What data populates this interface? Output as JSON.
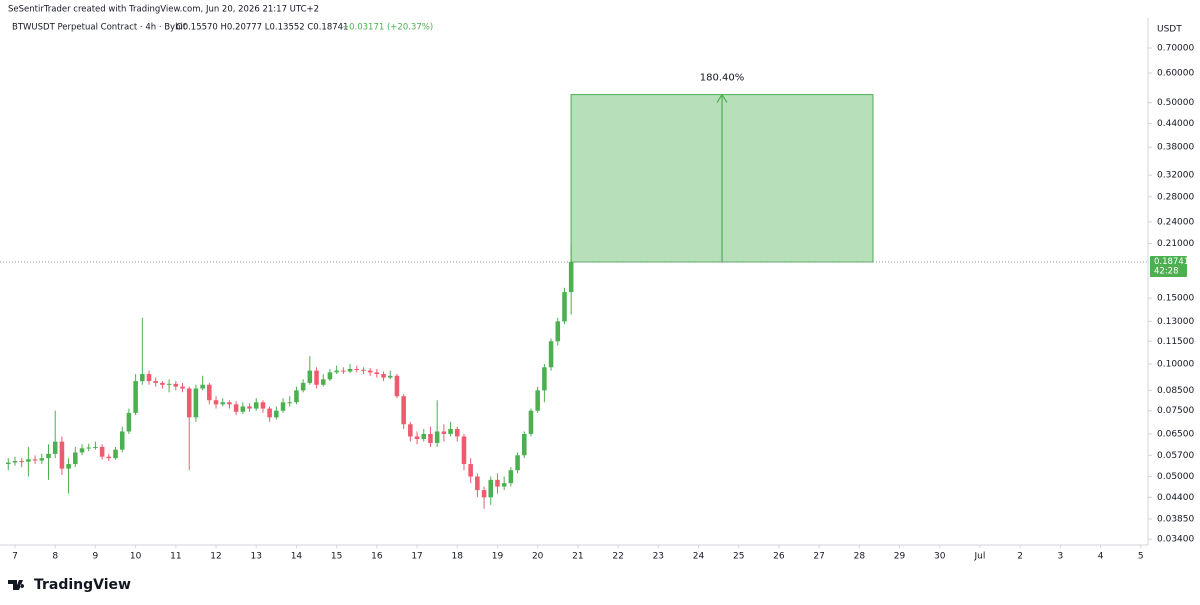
{
  "chart_data": {
    "type": "candlestick",
    "credit": "SeSentirTrader created with TradingView.com, Jun 20, 2026 21:17 UTC+2",
    "symbol": "BTWUSDT Perpetual Contract · 4h · Bybit",
    "ohlc_text": "O0.15570 H0.20777 L0.13552 C0.18741",
    "change_text": "+0.03171 (+20.37%)",
    "currency": "USDT",
    "countdown": "42:28",
    "brand": "TradingView",
    "up_color": "#4caf50",
    "down_color": "#ef5b6e",
    "log_scale": true,
    "grid": false,
    "x": [
      -0.167,
      0,
      0.167,
      0.333,
      0.5,
      0.667,
      0.833,
      1,
      1.167,
      1.333,
      1.5,
      1.667,
      1.833,
      2,
      2.167,
      2.333,
      2.5,
      2.667,
      2.833,
      3,
      3.167,
      3.333,
      3.5,
      3.667,
      3.833,
      4,
      4.167,
      4.333,
      4.5,
      4.667,
      4.833,
      5,
      5.167,
      5.333,
      5.5,
      5.667,
      5.833,
      6,
      6.167,
      6.333,
      6.5,
      6.667,
      6.833,
      7,
      7.167,
      7.333,
      7.5,
      7.667,
      7.833,
      8,
      8.167,
      8.333,
      8.5,
      8.667,
      8.833,
      9,
      9.167,
      9.333,
      9.5,
      9.667,
      9.833,
      10,
      10.167,
      10.333,
      10.5,
      10.667,
      10.833,
      11,
      11.167,
      11.333,
      11.5,
      11.667,
      11.833,
      12,
      12.167,
      12.333,
      12.5,
      12.667,
      12.833,
      13,
      13.167,
      13.333,
      13.5,
      13.667,
      13.833
    ],
    "open": [
      0.054,
      0.0545,
      0.055,
      0.0548,
      0.0556,
      0.0552,
      0.056,
      0.0575,
      0.062,
      0.0525,
      0.054,
      0.058,
      0.0595,
      0.0598,
      0.06,
      0.0565,
      0.056,
      0.059,
      0.066,
      0.074,
      0.09,
      0.094,
      0.09,
      0.089,
      0.088,
      0.0885,
      0.087,
      0.086,
      0.072,
      0.086,
      0.088,
      0.08,
      0.078,
      0.079,
      0.078,
      0.0745,
      0.077,
      0.076,
      0.079,
      0.076,
      0.072,
      0.075,
      0.079,
      0.079,
      0.085,
      0.089,
      0.096,
      0.088,
      0.091,
      0.095,
      0.096,
      0.0955,
      0.097,
      0.0965,
      0.096,
      0.095,
      0.094,
      0.092,
      0.093,
      0.082,
      0.069,
      0.064,
      0.063,
      0.065,
      0.0615,
      0.066,
      0.065,
      0.067,
      0.064,
      0.054,
      0.05,
      0.046,
      0.044,
      0.049,
      0.047,
      0.048,
      0.052,
      0.057,
      0.065,
      0.075,
      0.085,
      0.098,
      0.115,
      0.13,
      0.1557
    ],
    "high": [
      0.056,
      0.0565,
      0.056,
      0.06,
      0.057,
      0.0575,
      0.061,
      0.075,
      0.064,
      0.056,
      0.06,
      0.061,
      0.0612,
      0.062,
      0.061,
      0.0575,
      0.06,
      0.068,
      0.076,
      0.094,
      0.133,
      0.096,
      0.092,
      0.09,
      0.091,
      0.09,
      0.089,
      0.087,
      0.088,
      0.093,
      0.089,
      0.082,
      0.081,
      0.08,
      0.0795,
      0.079,
      0.0785,
      0.081,
      0.08,
      0.077,
      0.077,
      0.081,
      0.082,
      0.087,
      0.091,
      0.105,
      0.098,
      0.094,
      0.097,
      0.099,
      0.098,
      0.1,
      0.099,
      0.098,
      0.0975,
      0.097,
      0.0955,
      0.096,
      0.094,
      0.083,
      0.07,
      0.066,
      0.067,
      0.068,
      0.08,
      0.069,
      0.07,
      0.068,
      0.065,
      0.056,
      0.051,
      0.047,
      0.05,
      0.051,
      0.05,
      0.053,
      0.058,
      0.066,
      0.076,
      0.087,
      0.1,
      0.117,
      0.133,
      0.16,
      0.20777
    ],
    "low": [
      0.052,
      0.0535,
      0.053,
      0.05,
      0.054,
      0.054,
      0.049,
      0.056,
      0.0505,
      0.045,
      0.053,
      0.057,
      0.0585,
      0.059,
      0.0555,
      0.055,
      0.0555,
      0.058,
      0.065,
      0.073,
      0.088,
      0.088,
      0.087,
      0.086,
      0.084,
      0.085,
      0.084,
      0.052,
      0.07,
      0.085,
      0.078,
      0.076,
      0.077,
      0.076,
      0.073,
      0.0735,
      0.0745,
      0.075,
      0.074,
      0.07,
      0.071,
      0.074,
      0.077,
      0.078,
      0.084,
      0.088,
      0.086,
      0.087,
      0.09,
      0.094,
      0.094,
      0.0945,
      0.095,
      0.094,
      0.093,
      0.092,
      0.09,
      0.091,
      0.081,
      0.067,
      0.062,
      0.061,
      0.062,
      0.06,
      0.06,
      0.062,
      0.064,
      0.062,
      0.052,
      0.048,
      0.044,
      0.041,
      0.042,
      0.045,
      0.046,
      0.047,
      0.051,
      0.056,
      0.064,
      0.074,
      0.079,
      0.096,
      0.112,
      0.128,
      0.13552
    ],
    "close": [
      0.0545,
      0.055,
      0.0548,
      0.0556,
      0.0552,
      0.056,
      0.0575,
      0.062,
      0.0525,
      0.054,
      0.058,
      0.0595,
      0.0598,
      0.06,
      0.0565,
      0.056,
      0.059,
      0.066,
      0.074,
      0.09,
      0.094,
      0.09,
      0.089,
      0.088,
      0.0885,
      0.087,
      0.086,
      0.072,
      0.086,
      0.088,
      0.08,
      0.078,
      0.079,
      0.078,
      0.0745,
      0.077,
      0.076,
      0.079,
      0.076,
      0.072,
      0.075,
      0.079,
      0.079,
      0.085,
      0.089,
      0.096,
      0.088,
      0.091,
      0.095,
      0.096,
      0.0955,
      0.097,
      0.0965,
      0.096,
      0.095,
      0.094,
      0.092,
      0.093,
      0.082,
      0.069,
      0.064,
      0.063,
      0.065,
      0.0615,
      0.066,
      0.065,
      0.067,
      0.064,
      0.054,
      0.05,
      0.046,
      0.044,
      0.049,
      0.047,
      0.048,
      0.052,
      0.057,
      0.065,
      0.075,
      0.085,
      0.098,
      0.115,
      0.13,
      0.1557,
      0.18741
    ],
    "measure": {
      "x": [
        13.83,
        21.34
      ],
      "from": 0.18741,
      "percent": {
        "value": 180.4,
        "label": "180.40%"
      },
      "color": "#4caf50"
    },
    "xlim": [
      -0.373,
      28.18
    ],
    "xticks": [
      {
        "value": 0,
        "label": "7"
      },
      {
        "value": 1,
        "label": "8"
      },
      {
        "value": 2,
        "label": "9"
      },
      {
        "value": 3,
        "label": "10"
      },
      {
        "value": 4,
        "label": "11"
      },
      {
        "value": 5,
        "label": "12"
      },
      {
        "value": 6,
        "label": "13"
      },
      {
        "value": 7,
        "label": "14"
      },
      {
        "value": 8,
        "label": "15"
      },
      {
        "value": 9,
        "label": "16"
      },
      {
        "value": 10,
        "label": "17"
      },
      {
        "value": 11,
        "label": "18"
      },
      {
        "value": 12,
        "label": "19"
      },
      {
        "value": 13,
        "label": "20"
      },
      {
        "value": 14,
        "label": "21"
      },
      {
        "value": 15,
        "label": "22"
      },
      {
        "value": 16,
        "label": "23"
      },
      {
        "value": 17,
        "label": "24"
      },
      {
        "value": 18,
        "label": "25"
      },
      {
        "value": 19,
        "label": "26"
      },
      {
        "value": 20,
        "label": "27"
      },
      {
        "value": 21,
        "label": "28"
      },
      {
        "value": 22,
        "label": "29"
      },
      {
        "value": 23,
        "label": "30"
      },
      {
        "value": 24,
        "label": "Jul"
      },
      {
        "value": 25,
        "label": "2"
      },
      {
        "value": 26,
        "label": "3"
      },
      {
        "value": 27,
        "label": "4"
      },
      {
        "value": 28,
        "label": "5"
      }
    ],
    "ylim": [
      0.0328,
      0.832
    ],
    "yticks": [
      {
        "value": 0.7,
        "label": "0.70000"
      },
      {
        "value": 0.6,
        "label": "0.60000"
      },
      {
        "value": 0.5,
        "label": "0.50000"
      },
      {
        "value": 0.44,
        "label": "0.44000"
      },
      {
        "value": 0.38,
        "label": "0.38000"
      },
      {
        "value": 0.32,
        "label": "0.32000"
      },
      {
        "value": 0.28,
        "label": "0.28000"
      },
      {
        "value": 0.24,
        "label": "0.24000"
      },
      {
        "value": 0.21,
        "label": "0.21000"
      },
      {
        "value": 0.15,
        "label": "0.15000"
      },
      {
        "value": 0.13,
        "label": "0.13000"
      },
      {
        "value": 0.115,
        "label": "0.11500"
      },
      {
        "value": 0.1,
        "label": "0.10000"
      },
      {
        "value": 0.085,
        "label": "0.08500"
      },
      {
        "value": 0.075,
        "label": "0.07500"
      },
      {
        "value": 0.065,
        "label": "0.06500"
      },
      {
        "value": 0.057,
        "label": "0.05700"
      },
      {
        "value": 0.05,
        "label": "0.05000"
      },
      {
        "value": 0.044,
        "label": "0.04400"
      },
      {
        "value": 0.0385,
        "label": "0.03850"
      },
      {
        "value": 0.034,
        "label": "0.03400"
      }
    ]
  }
}
